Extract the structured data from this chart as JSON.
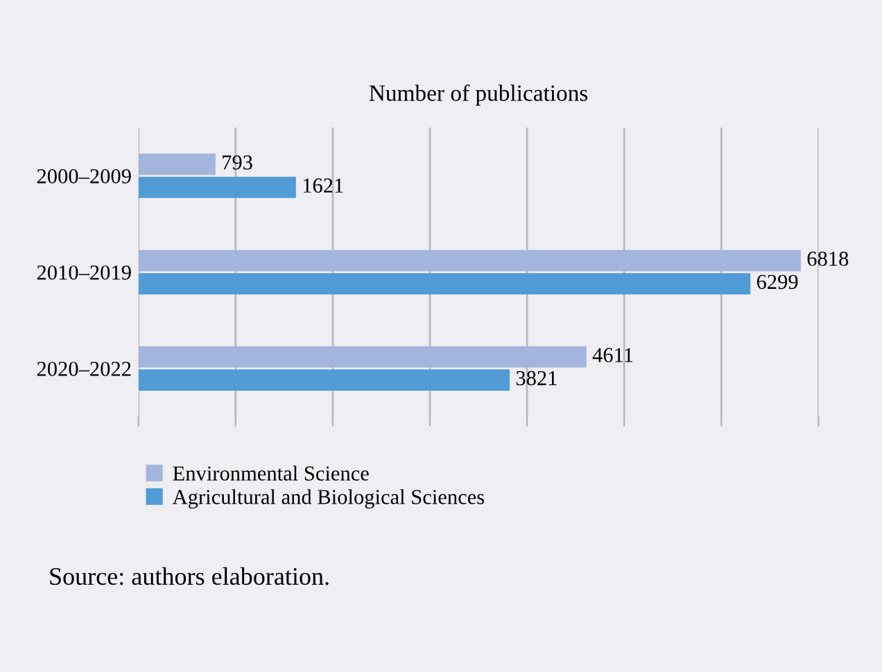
{
  "chart_data": {
    "type": "bar",
    "orientation": "horizontal",
    "title": "Number of publications",
    "categories": [
      "2000–2009",
      "2010–2019",
      "2020–2022"
    ],
    "series": [
      {
        "name": "Environmental Science",
        "color": "#a3b5dc",
        "values": [
          793,
          6818,
          4611
        ]
      },
      {
        "name": "Agricultural and Biological Sciences",
        "color": "#519bd6",
        "values": [
          1621,
          6299,
          3821
        ]
      }
    ],
    "xlim": [
      0,
      7000
    ],
    "xticks": [
      {
        "value": 0,
        "label": null
      },
      {
        "value": 1000,
        "label": null
      },
      {
        "value": 2000,
        "label": null
      },
      {
        "value": 3000,
        "label": null
      },
      {
        "value": 4000,
        "label": null
      },
      {
        "value": 5000,
        "label": null
      },
      {
        "value": 6000,
        "label": null
      },
      {
        "value": 7000,
        "label": null
      }
    ],
    "tick_labels": "y",
    "grid": "x",
    "data_labels": true,
    "legend": "bottom",
    "annotations": [
      "Source: authors elaboration."
    ]
  }
}
